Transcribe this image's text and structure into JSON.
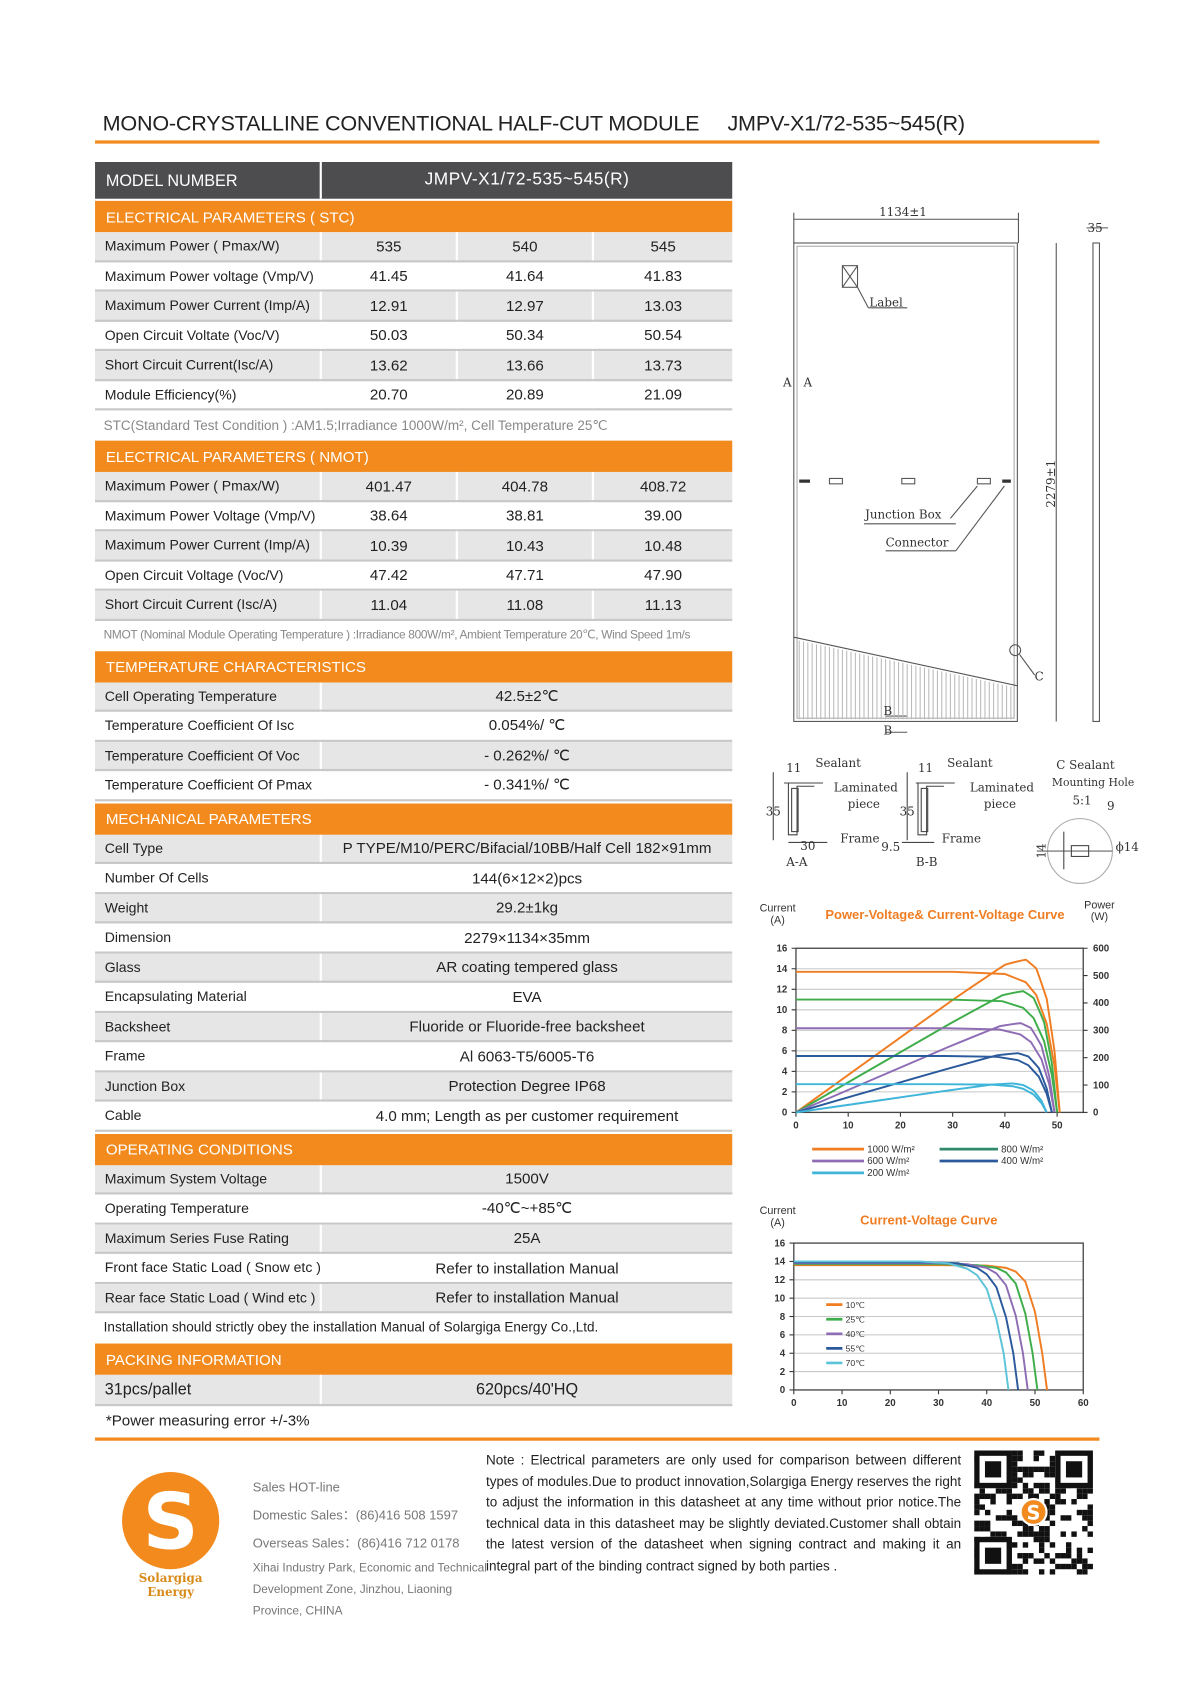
{
  "header": {
    "title": "MONO-CRYSTALLINE  CONVENTIONAL  HALF-CUT  MODULE",
    "model": "JMPV-X1/72-535~545(R)"
  },
  "colors": {
    "accent": "#f28a1e",
    "header_dark": "#4d4d4f",
    "row_grey": "#e6e6e6"
  },
  "model_row": {
    "label": "MODEL   NUMBER",
    "value": "JMPV-X1/72-535~545(R)"
  },
  "stc": {
    "title": "ELECTRICAL PARAMETERS ( STC)",
    "rows": [
      {
        "label": "Maximum Power ( Pmax/W)",
        "values": [
          "535",
          "540",
          "545"
        ]
      },
      {
        "label": "Maximum Power voltage (Vmp/V)",
        "values": [
          "41.45",
          "41.64",
          "41.83"
        ]
      },
      {
        "label": "Maximum Power Current (Imp/A)",
        "values": [
          "12.91",
          "12.97",
          "13.03"
        ]
      },
      {
        "label": "Open Circuit Voltate (Voc/V)",
        "values": [
          "50.03",
          "50.34",
          "50.54"
        ]
      },
      {
        "label": "Short Circuit Current(Isc/A)",
        "values": [
          "13.62",
          "13.66",
          "13.73"
        ]
      },
      {
        "label": "Module Efficiency(%)",
        "values": [
          "20.70",
          "20.89",
          "21.09"
        ]
      }
    ],
    "note": "STC(Standard Test Condition  ) :AM1.5;Irradiance 1000W/m², Cell Temperature 25℃"
  },
  "nmot": {
    "title": "ELECTRICAL PARAMETERS ( NMOT)",
    "rows": [
      {
        "label": "Maximum Power ( Pmax/W)",
        "values": [
          "401.47",
          "404.78",
          "408.72"
        ]
      },
      {
        "label": "Maximum Power Voltage (Vmp/V)",
        "values": [
          "38.64",
          "38.81",
          "39.00"
        ]
      },
      {
        "label": "Maximum Power Current (Imp/A)",
        "values": [
          "10.39",
          "10.43",
          "10.48"
        ]
      },
      {
        "label": "Open Circuit Voltage (Voc/V)",
        "values": [
          "47.42",
          "47.71",
          "47.90"
        ]
      },
      {
        "label": "Short Circuit Current (Isc/A)",
        "values": [
          "11.04",
          "11.08",
          "11.13"
        ]
      }
    ],
    "note": "NMOT  (Nominal Module Operating Temperature ) :Irradiance 800W/m², Ambient Temperature 20℃, Wind Speed 1m/s"
  },
  "temperature": {
    "title": "TEMPERATURE CHARACTERISTICS",
    "rows": [
      {
        "label": "Cell Operating Temperature",
        "value": "42.5±2℃"
      },
      {
        "label": "Temperature Coefficient Of Isc",
        "value": "0.054%/ ℃"
      },
      {
        "label": "Temperature Coefficient Of Voc",
        "value": "- 0.262%/ ℃"
      },
      {
        "label": "Temperature Coefficient Of Pmax",
        "value": "- 0.341%/ ℃"
      }
    ]
  },
  "mechanical": {
    "title": "MECHANICAL PARAMETERS",
    "rows": [
      {
        "label": "Cell Type",
        "value": "P TYPE/M10/PERC/Bifacial/10BB/Half Cell 182×91mm"
      },
      {
        "label": "Number Of Cells",
        "value": "144(6×12×2)pcs"
      },
      {
        "label": "Weight",
        "value": "29.2±1kg"
      },
      {
        "label": "Dimension",
        "value": "2279×1134×35mm"
      },
      {
        "label": "Glass",
        "value": "AR coating tempered glass"
      },
      {
        "label": "Encapsulating Material",
        "value": "EVA"
      },
      {
        "label": "Backsheet",
        "value": "Fluoride or Fluoride-free backsheet"
      },
      {
        "label": "Frame",
        "value": "Al 6063-T5/6005-T6"
      },
      {
        "label": "Junction Box",
        "value": "Protection Degree IP68"
      },
      {
        "label": "Cable",
        "value": "4.0 mm;  Length as per customer requirement"
      }
    ]
  },
  "operating": {
    "title": "OPERATING CONDITIONS",
    "rows": [
      {
        "label": "Maximum System Voltage",
        "value": "1500V"
      },
      {
        "label": "Operating Temperature",
        "value": "-40℃~+85℃"
      },
      {
        "label": "Maximum Series Fuse Rating",
        "value": "25A"
      },
      {
        "label": "Front face Static Load ( Snow etc )",
        "value": "Refer to installation  Manual"
      },
      {
        "label": "Rear face Static Load ( Wind etc )",
        "value": "Refer to installation  Manual"
      }
    ],
    "note": "Installation should strictly obey the installation Manual of Solargiga  Energy Co.,Ltd."
  },
  "packing": {
    "title": "PACKING INFORMATION",
    "row": {
      "label": "31pcs/pallet",
      "value": "620pcs/40'HQ"
    },
    "note": "*Power measuring error  +/-3%"
  },
  "drawing": {
    "width_dim": "1134±1",
    "thickness_dim": "35",
    "label_tag": "Label",
    "section_a": "A",
    "length_dim": "2279±1",
    "junction_box": "Junction Box",
    "connector": "Connector",
    "c_mark": "C",
    "b_mark": "B",
    "aa": {
      "dim_top": "11",
      "sealant": "Sealant",
      "laminated": "Laminated",
      "piece": "piece",
      "height": "35",
      "width": "30",
      "frame": "Frame",
      "name": "A-A"
    },
    "bb": {
      "dim_top": "11",
      "sealant": "Sealant",
      "laminated": "Laminated",
      "piece": "piece",
      "height": "35",
      "width": "9.5",
      "frame": "Frame",
      "name": "B-B"
    },
    "c": {
      "title": "C Sealant",
      "hole": "Mounting Hole",
      "scale": "5:1",
      "dim9": "9",
      "dim14": "14",
      "dia": "ϕ14"
    }
  },
  "chart_data": [
    {
      "type": "line",
      "title": "Power-Voltage& Current-Voltage Curve",
      "ylabel": "Current\n(A)",
      "y2label": "Power\n(W)",
      "ylabel_lines": [
        "Current",
        "(A)"
      ],
      "y2label_lines": [
        "Power",
        "(W)"
      ],
      "xlim": [
        0,
        55
      ],
      "ylim": [
        0,
        16
      ],
      "y2lim": [
        0,
        600
      ],
      "xticks": [
        "0",
        "10",
        "20",
        "30",
        "40",
        "50"
      ],
      "yticks": [
        "0",
        "2",
        "4",
        "6",
        "8",
        "10",
        "12",
        "14",
        "16"
      ],
      "y2ticks": [
        "0",
        "100",
        "200",
        "300",
        "400",
        "500",
        "600"
      ],
      "grid": true,
      "legend": "bottom",
      "series": [
        {
          "name": "1000 W/m²",
          "color": "#f07d22",
          "v": [
            0,
            30,
            40,
            44,
            46,
            48,
            49.5,
            50.5
          ],
          "i": [
            13.7,
            13.7,
            13.49,
            12.69,
            11.44,
            8.66,
            4.52,
            0
          ]
        },
        {
          "name": "800 W/m²",
          "color": "#3fae4a",
          "v": [
            0,
            29.5,
            39.5,
            43.5,
            45.5,
            47.5,
            49,
            50
          ],
          "i": [
            11.0,
            11.0,
            10.84,
            10.19,
            9.19,
            6.95,
            3.63,
            0
          ]
        },
        {
          "name": "600 W/m²",
          "color": "#8f6db5",
          "v": [
            0,
            29,
            39,
            43,
            45,
            47,
            48.5,
            49.5
          ],
          "i": [
            8.2,
            8.2,
            8.08,
            7.59,
            6.85,
            5.18,
            2.71,
            0
          ]
        },
        {
          "name": "400 W/m²",
          "color": "#2a5a9c",
          "v": [
            0,
            28.5,
            38.5,
            42.5,
            44.5,
            46.5,
            48,
            49
          ],
          "i": [
            5.5,
            5.5,
            5.42,
            5.09,
            4.59,
            3.48,
            1.82,
            0
          ]
        },
        {
          "name": "200 W/m²",
          "color": "#3fb5d9",
          "v": [
            0,
            27.5,
            37.5,
            41.5,
            43.5,
            45.5,
            47,
            48
          ],
          "i": [
            2.75,
            2.75,
            2.71,
            2.55,
            2.3,
            1.74,
            0.91,
            0
          ]
        }
      ],
      "legend_color_800": "#2f8a6e"
    },
    {
      "type": "line",
      "title": "Current-Voltage Curve",
      "ylabel_lines": [
        "Current",
        "(A)"
      ],
      "xlim": [
        0,
        60
      ],
      "ylim": [
        0,
        16
      ],
      "xticks": [
        "0",
        "10",
        "20",
        "30",
        "40",
        "50",
        "60"
      ],
      "yticks": [
        "0",
        "2",
        "4",
        "6",
        "8",
        "10",
        "12",
        "14",
        "16"
      ],
      "grid": true,
      "legend": "inside-left",
      "series": [
        {
          "name": "10℃",
          "color": "#f07d22",
          "v": [
            0,
            30,
            40,
            44,
            46,
            48,
            50,
            51.5,
            52.5
          ],
          "i": [
            13.6,
            13.6,
            13.55,
            13.3,
            12.9,
            11.8,
            8.5,
            4.0,
            0
          ]
        },
        {
          "name": "25℃",
          "color": "#3fae4a",
          "v": [
            0,
            30,
            38,
            42,
            44,
            46,
            48,
            49.5,
            50.5
          ],
          "i": [
            13.7,
            13.7,
            13.6,
            13.3,
            12.8,
            11.6,
            8.3,
            4.0,
            0
          ]
        },
        {
          "name": "40℃",
          "color": "#8f6db5",
          "v": [
            0,
            30,
            36,
            40,
            42,
            44,
            46,
            47.5,
            48.5
          ],
          "i": [
            13.8,
            13.8,
            13.7,
            13.3,
            12.7,
            11.4,
            8.1,
            4.0,
            0
          ]
        },
        {
          "name": "55℃",
          "color": "#2a5a9c",
          "v": [
            0,
            28,
            34,
            38,
            40,
            42,
            44,
            45.5,
            46.5
          ],
          "i": [
            13.9,
            13.9,
            13.8,
            13.3,
            12.6,
            11.2,
            7.9,
            4.0,
            0
          ]
        },
        {
          "name": "70℃",
          "color": "#5cc4d8",
          "v": [
            0,
            26,
            32,
            36,
            38,
            40,
            42,
            43.5,
            44.5
          ],
          "i": [
            14.0,
            14.0,
            13.8,
            13.2,
            12.5,
            11.0,
            7.7,
            4.0,
            0
          ]
        }
      ]
    }
  ],
  "footer": {
    "brand": "Solargiga Energy",
    "sales_title": "Sales HOT-line",
    "domestic": "Domestic Sales：(86)416 508 1597",
    "overseas": "Overseas Sales：(86)416 712 0178",
    "address_lines": [
      "Xihai Industry Park, Economic and Technical",
      "Development  Zone, Jinzhou, Liaoning",
      "Province, CHINA"
    ],
    "note": "Note :  Electrical parameters are only used for comparison between different types of modules.Due to product innovation,Solargiga Energy reserves the right to adjust the information in this datasheet at any time without prior notice.The technical data in this datasheet may be slightly deviated.Customer shall obtain the latest version of the datasheet when signing contract and making it an integral part of the binding contract signed by both parties ."
  }
}
